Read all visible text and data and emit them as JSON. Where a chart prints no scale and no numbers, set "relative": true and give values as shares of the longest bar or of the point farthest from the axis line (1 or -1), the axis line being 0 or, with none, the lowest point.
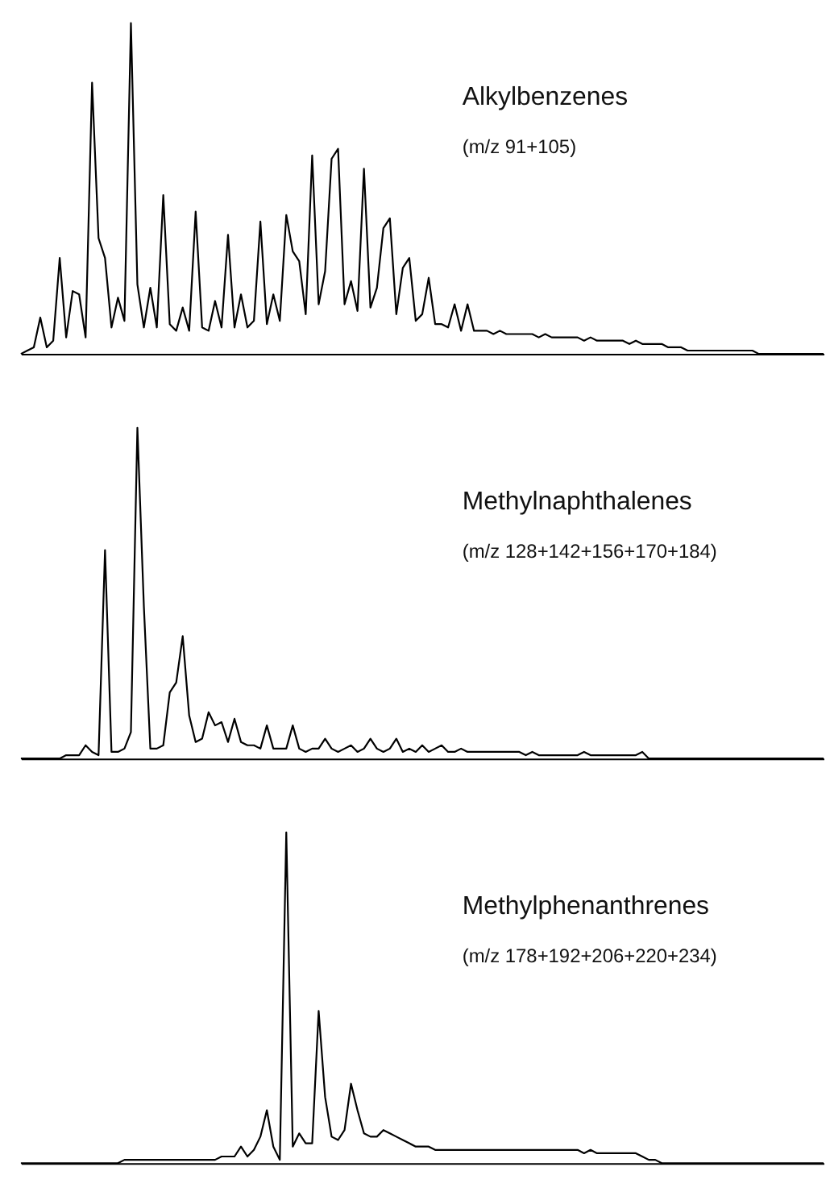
{
  "chart_data": [
    {
      "type": "line",
      "relative": true,
      "title": "Alkylbenzenes",
      "subtitle": "(m/z 91+105)",
      "categories": [
        null,
        null,
        null,
        null,
        null,
        null,
        null,
        null,
        null,
        null,
        null,
        null,
        null,
        null,
        null,
        null,
        null,
        null,
        null,
        null,
        null,
        null,
        null,
        null,
        null,
        null,
        null,
        null,
        null,
        null,
        null,
        null,
        null,
        null,
        null,
        null,
        null,
        null,
        null,
        null,
        null,
        null,
        null,
        null,
        null,
        null,
        null,
        null,
        null,
        null,
        null,
        null,
        null,
        null,
        null,
        null,
        null,
        null,
        null,
        null,
        null,
        null,
        null,
        null,
        null,
        null,
        null,
        null,
        null,
        null,
        null,
        null,
        null,
        null,
        null,
        null,
        null,
        null,
        null,
        null,
        null,
        null,
        null,
        null,
        null,
        null,
        null,
        null,
        null,
        null,
        null,
        null,
        null,
        null,
        null,
        null,
        null,
        null,
        null,
        null,
        null,
        null,
        null,
        null,
        null,
        null,
        null,
        null,
        null,
        null,
        null,
        null,
        null,
        null,
        null,
        null,
        null,
        null,
        null,
        null,
        null,
        null,
        null,
        null,
        null
      ],
      "series": [
        {
          "color": "#000000",
          "values": [
            0,
            0.01,
            0.02,
            0.11,
            0.02,
            0.04,
            0.29,
            0.05,
            0.19,
            0.18,
            0.05,
            0.82,
            0.35,
            0.29,
            0.08,
            0.17,
            0.1,
            1,
            0.21,
            0.08,
            0.2,
            0.08,
            0.48,
            0.09,
            0.07,
            0.14,
            0.07,
            0.43,
            0.08,
            0.07,
            0.16,
            0.08,
            0.36,
            0.08,
            0.18,
            0.08,
            0.1,
            0.4,
            0.09,
            0.18,
            0.1,
            0.42,
            0.31,
            0.28,
            0.12,
            0.6,
            0.15,
            0.25,
            0.59,
            0.62,
            0.15,
            0.22,
            0.13,
            0.56,
            0.14,
            0.2,
            0.38,
            0.41,
            0.12,
            0.26,
            0.29,
            0.1,
            0.12,
            0.23,
            0.09,
            0.09,
            0.08,
            0.15,
            0.07,
            0.15,
            0.07,
            0.07,
            0.07,
            0.06,
            0.07,
            0.06,
            0.06,
            0.06,
            0.06,
            0.06,
            0.05,
            0.06,
            0.05,
            0.05,
            0.05,
            0.05,
            0.05,
            0.04,
            0.05,
            0.04,
            0.04,
            0.04,
            0.04,
            0.04,
            0.03,
            0.04,
            0.03,
            0.03,
            0.03,
            0.03,
            0.02,
            0.02,
            0.02,
            0.01,
            0.01,
            0.01,
            0.01,
            0.01,
            0.01,
            0.01,
            0.01,
            0.01,
            0.01,
            0.01,
            0,
            0,
            0,
            0,
            0,
            0,
            0,
            0,
            0,
            0,
            0
          ]
        }
      ]
    },
    {
      "type": "line",
      "relative": true,
      "title": "Methylnaphthalenes",
      "subtitle": "(m/z 128+142+156+170+184)",
      "categories": [
        null,
        null,
        null,
        null,
        null,
        null,
        null,
        null,
        null,
        null,
        null,
        null,
        null,
        null,
        null,
        null,
        null,
        null,
        null,
        null,
        null,
        null,
        null,
        null,
        null,
        null,
        null,
        null,
        null,
        null,
        null,
        null,
        null,
        null,
        null,
        null,
        null,
        null,
        null,
        null,
        null,
        null,
        null,
        null,
        null,
        null,
        null,
        null,
        null,
        null,
        null,
        null,
        null,
        null,
        null,
        null,
        null,
        null,
        null,
        null,
        null,
        null,
        null,
        null,
        null,
        null,
        null,
        null,
        null,
        null,
        null,
        null,
        null,
        null,
        null,
        null,
        null,
        null,
        null,
        null,
        null,
        null,
        null,
        null,
        null,
        null,
        null,
        null,
        null,
        null,
        null,
        null,
        null,
        null,
        null,
        null,
        null,
        null,
        null,
        null,
        null,
        null,
        null,
        null,
        null,
        null,
        null,
        null,
        null,
        null,
        null,
        null,
        null,
        null,
        null,
        null,
        null,
        null,
        null,
        null,
        null,
        null,
        null,
        null,
        null
      ],
      "series": [
        {
          "color": "#000000",
          "values": [
            0,
            0,
            0,
            0,
            0,
            0,
            0,
            0.01,
            0.01,
            0.01,
            0.04,
            0.02,
            0.01,
            0.63,
            0.02,
            0.02,
            0.03,
            0.08,
            1,
            0.46,
            0.03,
            0.03,
            0.04,
            0.2,
            0.23,
            0.37,
            0.13,
            0.05,
            0.06,
            0.14,
            0.1,
            0.11,
            0.05,
            0.12,
            0.05,
            0.04,
            0.04,
            0.03,
            0.1,
            0.03,
            0.03,
            0.03,
            0.1,
            0.03,
            0.02,
            0.03,
            0.03,
            0.06,
            0.03,
            0.02,
            0.03,
            0.04,
            0.02,
            0.03,
            0.06,
            0.03,
            0.02,
            0.03,
            0.06,
            0.02,
            0.03,
            0.02,
            0.04,
            0.02,
            0.03,
            0.04,
            0.02,
            0.02,
            0.03,
            0.02,
            0.02,
            0.02,
            0.02,
            0.02,
            0.02,
            0.02,
            0.02,
            0.02,
            0.01,
            0.02,
            0.01,
            0.01,
            0.01,
            0.01,
            0.01,
            0.01,
            0.01,
            0.02,
            0.01,
            0.01,
            0.01,
            0.01,
            0.01,
            0.01,
            0.01,
            0.01,
            0.02,
            0,
            0,
            0,
            0,
            0,
            0,
            0,
            0,
            0,
            0,
            0,
            0,
            0,
            0,
            0,
            0,
            0,
            0,
            0,
            0,
            0,
            0,
            0,
            0,
            0,
            0,
            0,
            0
          ]
        }
      ]
    },
    {
      "type": "line",
      "relative": true,
      "title": "Methylphenanthrenes",
      "subtitle": "(m/z 178+192+206+220+234)",
      "categories": [
        null,
        null,
        null,
        null,
        null,
        null,
        null,
        null,
        null,
        null,
        null,
        null,
        null,
        null,
        null,
        null,
        null,
        null,
        null,
        null,
        null,
        null,
        null,
        null,
        null,
        null,
        null,
        null,
        null,
        null,
        null,
        null,
        null,
        null,
        null,
        null,
        null,
        null,
        null,
        null,
        null,
        null,
        null,
        null,
        null,
        null,
        null,
        null,
        null,
        null,
        null,
        null,
        null,
        null,
        null,
        null,
        null,
        null,
        null,
        null,
        null,
        null,
        null,
        null,
        null,
        null,
        null,
        null,
        null,
        null,
        null,
        null,
        null,
        null,
        null,
        null,
        null,
        null,
        null,
        null,
        null,
        null,
        null,
        null,
        null,
        null,
        null,
        null,
        null,
        null,
        null,
        null,
        null,
        null,
        null,
        null,
        null,
        null,
        null,
        null,
        null,
        null,
        null,
        null,
        null,
        null,
        null,
        null,
        null,
        null,
        null,
        null,
        null,
        null,
        null,
        null,
        null,
        null,
        null,
        null,
        null,
        null,
        null,
        null,
        null
      ],
      "series": [
        {
          "color": "#000000",
          "values": [
            0,
            0,
            0,
            0,
            0,
            0,
            0,
            0,
            0,
            0,
            0,
            0,
            0,
            0,
            0,
            0,
            0.01,
            0.01,
            0.01,
            0.01,
            0.01,
            0.01,
            0.01,
            0.01,
            0.01,
            0.01,
            0.01,
            0.01,
            0.01,
            0.01,
            0.01,
            0.02,
            0.02,
            0.02,
            0.05,
            0.02,
            0.04,
            0.08,
            0.16,
            0.05,
            0.01,
            1,
            0.05,
            0.09,
            0.06,
            0.06,
            0.46,
            0.2,
            0.08,
            0.07,
            0.1,
            0.24,
            0.16,
            0.09,
            0.08,
            0.08,
            0.1,
            0.09,
            0.08,
            0.07,
            0.06,
            0.05,
            0.05,
            0.05,
            0.04,
            0.04,
            0.04,
            0.04,
            0.04,
            0.04,
            0.04,
            0.04,
            0.04,
            0.04,
            0.04,
            0.04,
            0.04,
            0.04,
            0.04,
            0.04,
            0.04,
            0.04,
            0.04,
            0.04,
            0.04,
            0.04,
            0.04,
            0.03,
            0.04,
            0.03,
            0.03,
            0.03,
            0.03,
            0.03,
            0.03,
            0.03,
            0.02,
            0.01,
            0.01,
            0,
            0,
            0,
            0,
            0,
            0,
            0,
            0,
            0,
            0,
            0,
            0,
            0,
            0,
            0,
            0,
            0,
            0,
            0,
            0,
            0,
            0,
            0,
            0,
            0,
            0
          ]
        }
      ]
    }
  ]
}
